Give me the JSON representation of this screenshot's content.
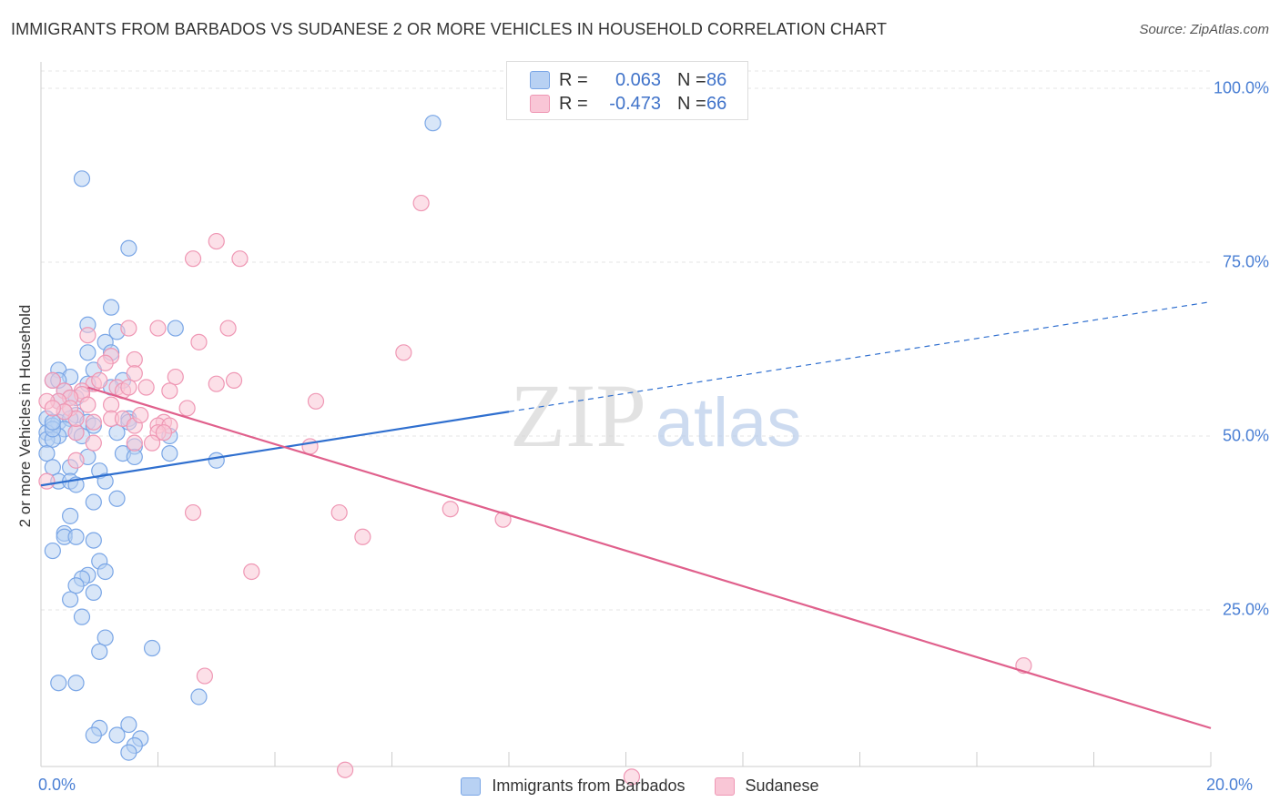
{
  "title": "IMMIGRANTS FROM BARBADOS VS SUDANESE 2 OR MORE VEHICLES IN HOUSEHOLD CORRELATION CHART",
  "source": "Source: ZipAtlas.com",
  "watermark": {
    "zip": "ZIP",
    "atlas": "atlas"
  },
  "legend_top": {
    "rows": [
      {
        "r_label": "R =",
        "r_value": "0.063",
        "n_label": "N =",
        "n_value": "86",
        "fill": "#b8d1f3",
        "stroke": "#7aa6e6"
      },
      {
        "r_label": "R =",
        "r_value": "-0.473",
        "n_label": "N =",
        "n_value": "66",
        "fill": "#f9c6d6",
        "stroke": "#ef97b4"
      }
    ]
  },
  "legend_bottom": [
    {
      "label": "Immigrants from Barbados",
      "fill": "#b8d1f3",
      "stroke": "#7aa6e6"
    },
    {
      "label": "Sudanese",
      "fill": "#f9c6d6",
      "stroke": "#ef97b4"
    }
  ],
  "chart_data": {
    "type": "scatter",
    "title": "IMMIGRANTS FROM BARBADOS VS SUDANESE 2 OR MORE VEHICLES IN HOUSEHOLD CORRELATION CHART",
    "xlabel": "",
    "ylabel": "2 or more Vehicles in Household",
    "xlim": [
      0,
      20
    ],
    "ylim": [
      0,
      105
    ],
    "x_tick_labels": [
      "0.0%",
      "20.0%"
    ],
    "y_tick_labels": [
      {
        "value": 100,
        "label": "100.0%"
      },
      {
        "value": 75,
        "label": "75.0%"
      },
      {
        "value": 50,
        "label": "50.0%"
      },
      {
        "value": 25,
        "label": "25.0%"
      }
    ],
    "grid": true,
    "series": [
      {
        "name": "Immigrants from Barbados",
        "color": "#7aa6e6",
        "fill": "#b8d1f3",
        "trend": {
          "x0": 0,
          "y0": 42.9,
          "x1": 8,
          "y1": 53.5,
          "dashed_to_x": 20,
          "dashed_to_y": 69.3,
          "color": "#2f6fcf"
        },
        "points": [
          [
            6.7,
            95.0
          ],
          [
            0.7,
            87.0
          ],
          [
            1.5,
            77.0
          ],
          [
            1.2,
            68.5
          ],
          [
            0.8,
            66.0
          ],
          [
            1.3,
            65.0
          ],
          [
            2.3,
            65.5
          ],
          [
            1.1,
            63.5
          ],
          [
            1.2,
            62.0
          ],
          [
            0.8,
            62.0
          ],
          [
            0.3,
            59.5
          ],
          [
            0.9,
            59.5
          ],
          [
            0.2,
            58.0
          ],
          [
            0.5,
            58.5
          ],
          [
            1.4,
            58.0
          ],
          [
            0.8,
            57.5
          ],
          [
            1.2,
            57.0
          ],
          [
            0.4,
            56.5
          ],
          [
            0.5,
            55.5
          ],
          [
            0.3,
            55.0
          ],
          [
            0.6,
            55.5
          ],
          [
            0.4,
            53.5
          ],
          [
            0.6,
            53.0
          ],
          [
            0.1,
            52.5
          ],
          [
            0.3,
            52.0
          ],
          [
            0.5,
            52.5
          ],
          [
            0.8,
            52.0
          ],
          [
            1.5,
            52.5
          ],
          [
            0.2,
            51.5
          ],
          [
            0.4,
            51.0
          ],
          [
            0.6,
            50.5
          ],
          [
            0.9,
            51.5
          ],
          [
            0.1,
            50.5
          ],
          [
            0.3,
            50.0
          ],
          [
            0.7,
            50.0
          ],
          [
            1.3,
            50.5
          ],
          [
            2.2,
            50.0
          ],
          [
            0.1,
            49.5
          ],
          [
            0.2,
            49.5
          ],
          [
            1.6,
            48.5
          ],
          [
            1.4,
            47.5
          ],
          [
            2.2,
            47.5
          ],
          [
            0.8,
            47.0
          ],
          [
            1.6,
            47.0
          ],
          [
            3.0,
            46.5
          ],
          [
            0.1,
            47.5
          ],
          [
            0.2,
            45.5
          ],
          [
            0.5,
            45.5
          ],
          [
            1.0,
            45.0
          ],
          [
            0.3,
            43.5
          ],
          [
            0.5,
            43.5
          ],
          [
            0.6,
            43.0
          ],
          [
            1.1,
            43.5
          ],
          [
            0.9,
            40.5
          ],
          [
            1.3,
            41.0
          ],
          [
            0.5,
            38.5
          ],
          [
            0.4,
            36.0
          ],
          [
            0.4,
            35.5
          ],
          [
            0.6,
            35.5
          ],
          [
            0.9,
            35.0
          ],
          [
            0.2,
            33.5
          ],
          [
            1.0,
            32.0
          ],
          [
            1.1,
            30.5
          ],
          [
            0.8,
            30.0
          ],
          [
            0.7,
            29.5
          ],
          [
            0.6,
            28.5
          ],
          [
            0.9,
            27.5
          ],
          [
            0.5,
            26.5
          ],
          [
            0.7,
            24.0
          ],
          [
            1.1,
            21.0
          ],
          [
            1.9,
            19.5
          ],
          [
            1.0,
            19.0
          ],
          [
            0.3,
            14.5
          ],
          [
            0.6,
            14.5
          ],
          [
            2.7,
            12.5
          ],
          [
            1.5,
            8.5
          ],
          [
            1.0,
            8.0
          ],
          [
            0.9,
            7.0
          ],
          [
            1.3,
            7.0
          ],
          [
            1.7,
            6.5
          ],
          [
            1.6,
            5.5
          ],
          [
            1.5,
            4.5
          ],
          [
            0.2,
            51.0
          ],
          [
            0.3,
            58.0
          ],
          [
            0.2,
            52.0
          ],
          [
            1.5,
            52.0
          ]
        ]
      },
      {
        "name": "Sudanese",
        "color": "#ef97b4",
        "fill": "#f9c6d6",
        "trend": {
          "x0": 0.8,
          "y0": 57.0,
          "x1": 20,
          "y1": 8.0,
          "color": "#e0608c"
        },
        "points": [
          [
            6.5,
            83.5
          ],
          [
            3.0,
            78.0
          ],
          [
            2.6,
            75.5
          ],
          [
            3.4,
            75.5
          ],
          [
            1.5,
            65.5
          ],
          [
            2.0,
            65.5
          ],
          [
            3.2,
            65.5
          ],
          [
            0.8,
            64.5
          ],
          [
            2.7,
            63.5
          ],
          [
            6.2,
            62.0
          ],
          [
            1.2,
            61.5
          ],
          [
            1.6,
            61.0
          ],
          [
            1.1,
            60.5
          ],
          [
            1.6,
            59.0
          ],
          [
            2.3,
            58.5
          ],
          [
            3.3,
            58.0
          ],
          [
            0.2,
            58.0
          ],
          [
            0.9,
            57.5
          ],
          [
            1.3,
            57.0
          ],
          [
            3.0,
            57.5
          ],
          [
            0.7,
            56.5
          ],
          [
            1.4,
            56.5
          ],
          [
            2.2,
            56.5
          ],
          [
            0.4,
            56.5
          ],
          [
            0.7,
            56.0
          ],
          [
            0.5,
            55.5
          ],
          [
            0.3,
            55.0
          ],
          [
            0.1,
            55.0
          ],
          [
            0.8,
            54.5
          ],
          [
            1.2,
            54.5
          ],
          [
            4.7,
            55.0
          ],
          [
            0.5,
            54.0
          ],
          [
            2.5,
            54.0
          ],
          [
            1.2,
            52.5
          ],
          [
            1.4,
            52.5
          ],
          [
            0.9,
            52.0
          ],
          [
            2.1,
            52.0
          ],
          [
            1.6,
            51.5
          ],
          [
            2.0,
            51.5
          ],
          [
            2.2,
            51.5
          ],
          [
            0.6,
            50.5
          ],
          [
            2.0,
            50.5
          ],
          [
            2.1,
            50.5
          ],
          [
            0.9,
            49.0
          ],
          [
            1.6,
            49.0
          ],
          [
            1.9,
            49.0
          ],
          [
            4.6,
            48.5
          ],
          [
            0.6,
            46.5
          ],
          [
            0.1,
            43.5
          ],
          [
            7.0,
            39.5
          ],
          [
            2.6,
            39.0
          ],
          [
            5.1,
            39.0
          ],
          [
            7.9,
            38.0
          ],
          [
            5.5,
            35.5
          ],
          [
            3.6,
            30.5
          ],
          [
            16.8,
            17.0
          ],
          [
            2.8,
            15.5
          ],
          [
            5.2,
            2.0
          ],
          [
            10.1,
            1.0
          ],
          [
            0.6,
            52.5
          ],
          [
            1.0,
            58.0
          ],
          [
            1.5,
            57.0
          ],
          [
            0.4,
            53.5
          ],
          [
            1.8,
            57.0
          ],
          [
            0.2,
            54.0
          ],
          [
            1.7,
            53.0
          ]
        ]
      }
    ]
  }
}
